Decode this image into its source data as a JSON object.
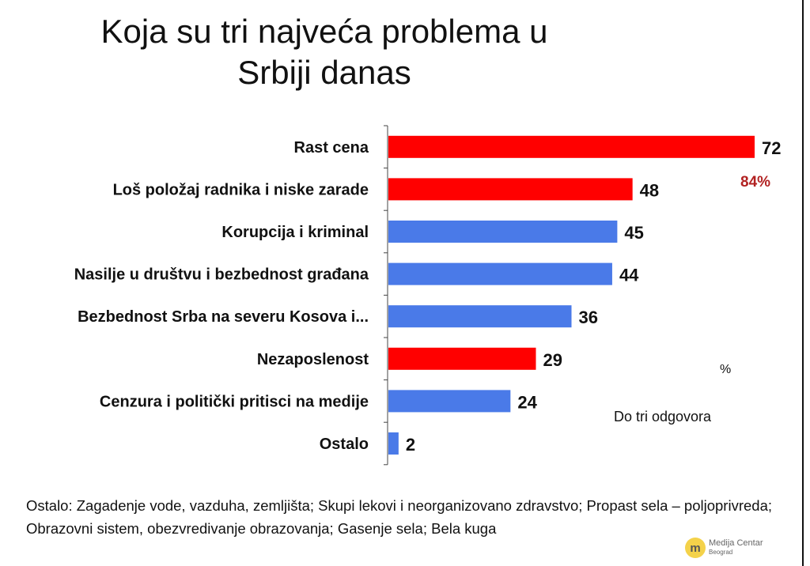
{
  "chart_data": {
    "type": "bar",
    "orientation": "horizontal",
    "title": "Koja su tri najveća problema u Srbiji danas",
    "categories": [
      "Rast cena",
      "Loš položaj radnika i niske zarade",
      "Korupcija i kriminal",
      "Nasilje u društvu i bezbednost građana",
      "Bezbednost Srba na severu Kosova i...",
      "Nezaposlenost",
      "Cenzura i politički pritisci na medije",
      "Ostalo"
    ],
    "values": [
      72,
      48,
      45,
      44,
      36,
      29,
      24,
      2
    ],
    "bar_colors": [
      "#ff0000",
      "#ff0000",
      "#4a7ae8",
      "#4a7ae8",
      "#4a7ae8",
      "#ff0000",
      "#4a7ae8",
      "#4a7ae8"
    ],
    "xlim": [
      0,
      72
    ],
    "grid": false,
    "annotations": {
      "highlight_total": "84%",
      "highlight_color": "#b22222",
      "unit": "%",
      "note": "Do tri odgovora"
    }
  },
  "footnote": "Ostalo: Zagadenje vode, vazduha, zemljišta; Skupi lekovi i neorganizovano zdravstvo; Propast sela – poljoprivreda; Obrazovni sistem, obezvredivanje obrazovanja; Gasenje sela; Bela kuga",
  "logo": {
    "name": "Medija Centar",
    "city": "Beograd"
  }
}
